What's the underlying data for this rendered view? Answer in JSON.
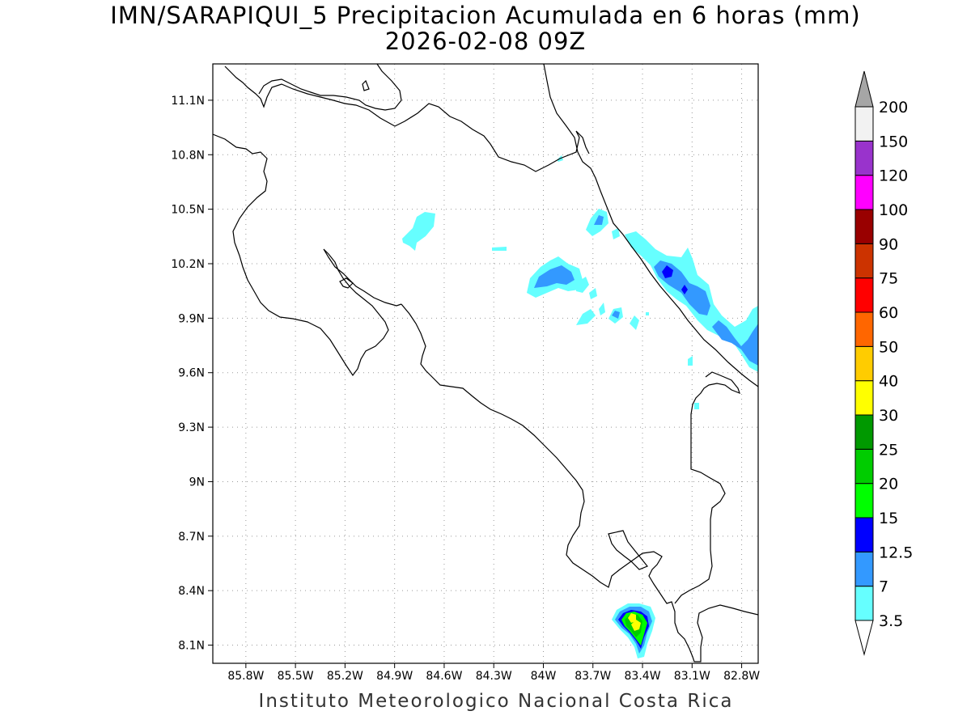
{
  "title": {
    "line1": "IMN/SARAPIQUI_5 Precipitacion Acumulada en 6 horas (mm)",
    "line2": "2026-02-08 09Z"
  },
  "footer": "Instituto Meteorologico Nacional Costa Rica",
  "axes": {
    "lon_labels": [
      "85.8W",
      "85.5W",
      "85.2W",
      "84.9W",
      "84.6W",
      "84.3W",
      "84W",
      "83.7W",
      "83.4W",
      "83.1W",
      "82.8W"
    ],
    "lat_labels": [
      "11.1N",
      "10.8N",
      "10.5N",
      "10.2N",
      "9.9N",
      "9.6N",
      "9.3N",
      "9N",
      "8.7N",
      "8.4N",
      "8.1N"
    ],
    "lon_range": [
      -86.0,
      -82.7
    ],
    "lat_range": [
      8.0,
      11.3
    ],
    "grid": "dotted"
  },
  "colorbar": {
    "labels": [
      "3.5",
      "7",
      "12.5",
      "15",
      "20",
      "25",
      "30",
      "40",
      "50",
      "60",
      "75",
      "90",
      "100",
      "120",
      "150",
      "200"
    ],
    "colors": [
      "#66ffff",
      "#3399ff",
      "#0000ff",
      "#00ff00",
      "#00cc00",
      "#009900",
      "#ffff00",
      "#ffcc00",
      "#ff6600",
      "#ff0000",
      "#cc3300",
      "#990000",
      "#ff00ff",
      "#9933cc",
      "#f2f2f2"
    ],
    "under_color": "#ffffff",
    "over_color": "#a6a6a6"
  }
}
